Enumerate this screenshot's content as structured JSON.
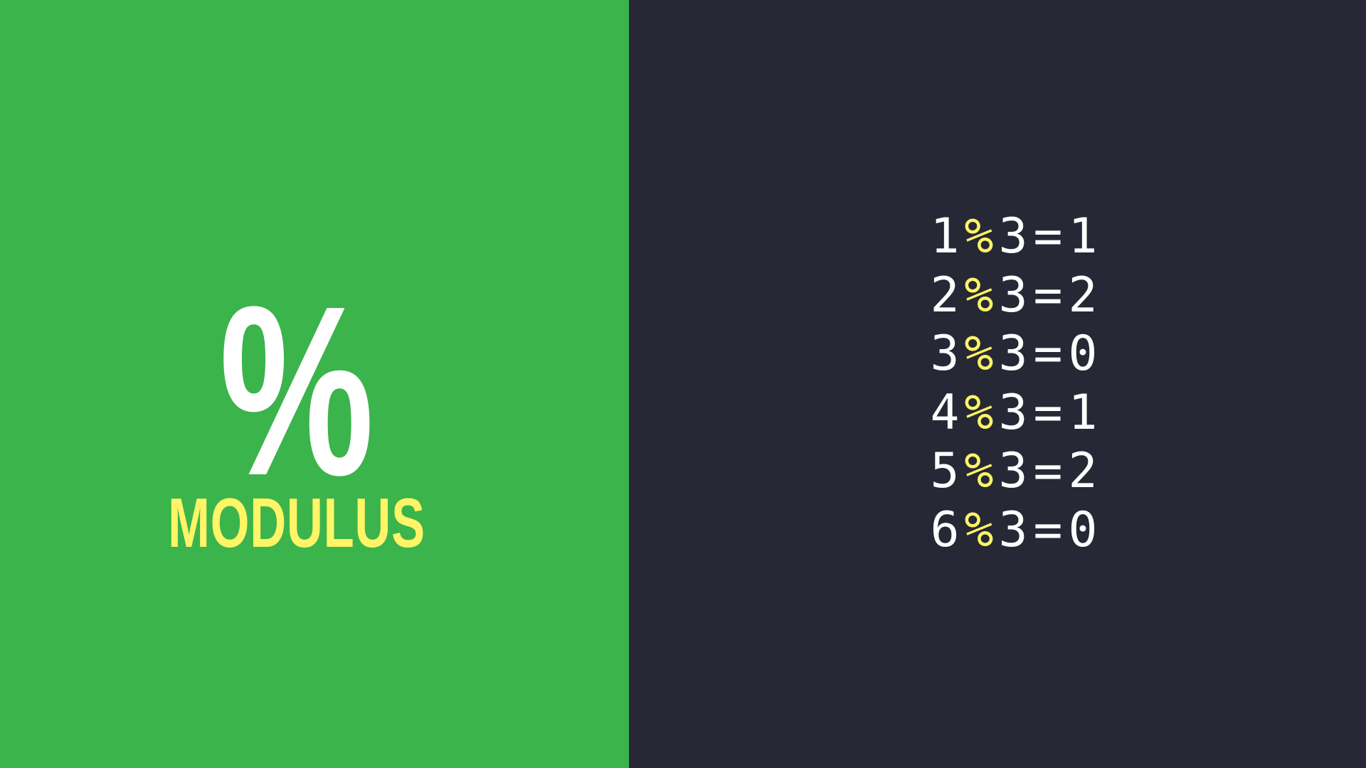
{
  "colors": {
    "left_background": "#3bb44c",
    "right_background": "#272836",
    "accent": "#fff566",
    "text": "#ffffff"
  },
  "hero": {
    "symbol": "%",
    "title": "MODULUS"
  },
  "equations": [
    {
      "left": "1",
      "operator": "%",
      "right": "3",
      "equals": "=",
      "result": "1"
    },
    {
      "left": "2",
      "operator": "%",
      "right": "3",
      "equals": "=",
      "result": "2"
    },
    {
      "left": "3",
      "operator": "%",
      "right": "3",
      "equals": "=",
      "result": "0"
    },
    {
      "left": "4",
      "operator": "%",
      "right": "3",
      "equals": "=",
      "result": "1"
    },
    {
      "left": "5",
      "operator": "%",
      "right": "3",
      "equals": "=",
      "result": "2"
    },
    {
      "left": "6",
      "operator": "%",
      "right": "3",
      "equals": "=",
      "result": "0"
    }
  ]
}
